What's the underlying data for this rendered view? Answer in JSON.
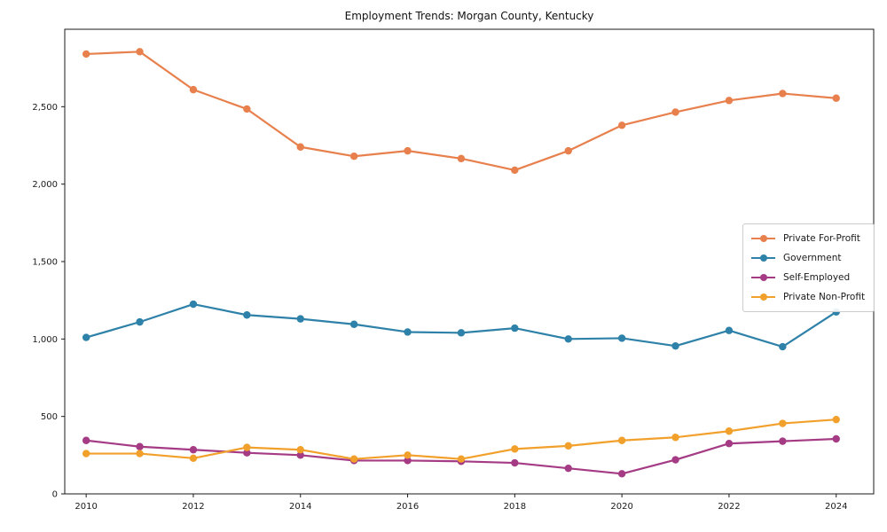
{
  "chart_data": {
    "type": "line",
    "title": "Employment Trends: Morgan County, Kentucky",
    "xlabel": "",
    "ylabel": "",
    "x": [
      2010,
      2011,
      2012,
      2013,
      2014,
      2015,
      2016,
      2017,
      2018,
      2019,
      2020,
      2021,
      2022,
      2023,
      2024
    ],
    "series": [
      {
        "name": "Private For-Profit",
        "color": "#E8804D",
        "values": [
          2840,
          2855,
          2610,
          2485,
          2240,
          2180,
          2215,
          2165,
          2090,
          2215,
          2380,
          2465,
          2540,
          2585,
          2555
        ]
      },
      {
        "name": "Government",
        "color": "#2E81A8",
        "values": [
          1010,
          1110,
          1225,
          1155,
          1130,
          1095,
          1045,
          1040,
          1070,
          1000,
          1005,
          955,
          1055,
          950,
          1175
        ]
      },
      {
        "name": "Self-Employed",
        "color": "#A53B85",
        "values": [
          345,
          305,
          285,
          265,
          250,
          215,
          215,
          210,
          200,
          165,
          130,
          220,
          325,
          340,
          355
        ]
      },
      {
        "name": "Private Non-Profit",
        "color": "#F2A02C",
        "values": [
          260,
          260,
          230,
          300,
          285,
          225,
          250,
          225,
          290,
          310,
          345,
          365,
          405,
          455,
          480
        ]
      }
    ],
    "xticks": [
      2010,
      2012,
      2014,
      2016,
      2018,
      2020,
      2022,
      2024
    ],
    "yticks": [
      0,
      500,
      1000,
      1500,
      2000,
      2500
    ],
    "ytick_labels": [
      "0",
      "500",
      "1,000",
      "1,500",
      "2,000",
      "2,500"
    ],
    "xlim": [
      2009.6,
      2024.7
    ],
    "ylim": [
      0,
      3000
    ],
    "grid": false,
    "legend_position": "center right",
    "marker": "circle",
    "axis_color": "#1a1a1a"
  }
}
